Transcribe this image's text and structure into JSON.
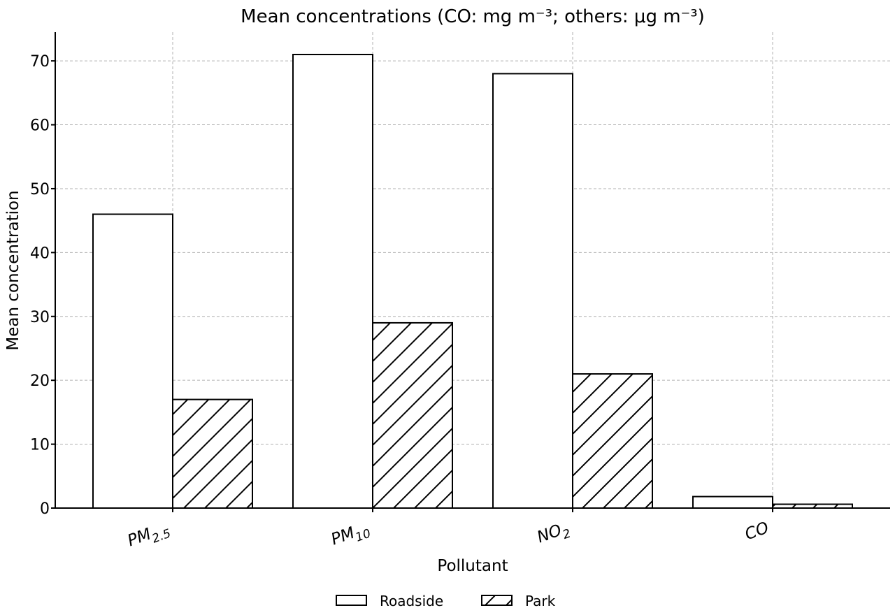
{
  "chart_data": {
    "type": "bar",
    "title": "Mean concentrations (CO: mg m⁻³; others: μg m⁻³)",
    "xlabel": "Pollutant",
    "ylabel": "Mean concentration",
    "categories": [
      "PM2.5",
      "PM10",
      "NO2",
      "CO"
    ],
    "category_labels": [
      {
        "base": "PM",
        "sub": "2.5"
      },
      {
        "base": "PM",
        "sub": "10"
      },
      {
        "base": "NO",
        "sub": "2"
      },
      {
        "base": "CO",
        "sub": ""
      }
    ],
    "series": [
      {
        "name": "Roadside",
        "values": [
          46,
          71,
          68,
          1.8
        ],
        "pattern": "none"
      },
      {
        "name": "Park",
        "values": [
          17,
          29,
          21,
          0.6
        ],
        "pattern": "diagonal-hatch"
      }
    ],
    "ylim": [
      0,
      74.5
    ],
    "yticks": [
      0,
      10,
      20,
      30,
      40,
      50,
      60,
      70
    ],
    "grid": true,
    "legend_position": "bottom-center",
    "colors": {
      "bar_fill": "#ffffff",
      "bar_edge": "#000000",
      "grid": "#b0b0b0"
    }
  }
}
